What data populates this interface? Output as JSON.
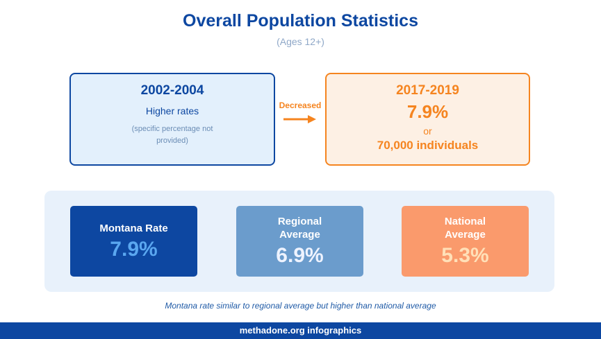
{
  "header": {
    "title": "Overall Population Statistics",
    "subtitle": "(Ages 12+)"
  },
  "comparison": {
    "before": {
      "period": "2002-2004",
      "text": "Higher rates",
      "note": "(specific percentage not provided)"
    },
    "change": "Decreased",
    "after": {
      "period": "2017-2019",
      "rate": "7.9%",
      "connector": "or",
      "count": "70,000 individuals"
    }
  },
  "cards": [
    {
      "label": "Montana Rate",
      "value": "7.9%"
    },
    {
      "label": "Regional Average",
      "value": "6.9%"
    },
    {
      "label": "National Average",
      "value": "5.3%"
    }
  ],
  "caption": "Montana rate similar to regional average but higher than national average",
  "footer": "methadone.org infographics"
}
